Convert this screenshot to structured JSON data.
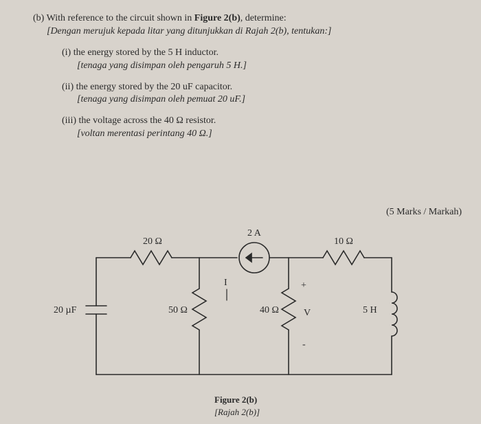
{
  "question": {
    "part_label": "(b)",
    "intro_en": "With reference to the circuit shown in ",
    "figref": "Figure 2(b)",
    "intro_en2": ", determine:",
    "intro_ms": "[Dengan merujuk kepada litar yang ditunjukkan di Rajah 2(b), tentukan:]",
    "items": [
      {
        "num": "(i)",
        "en": "the energy stored by the 5 H inductor.",
        "ms": "[tenaga yang disimpan oleh pengaruh 5 H.]"
      },
      {
        "num": "(ii)",
        "en": "the energy stored by the 20 uF capacitor.",
        "ms": "[tenaga yang disimpan oleh pemuat 20 uF.]"
      },
      {
        "num": "(iii)",
        "en": "the voltage across the 40 Ω resistor.",
        "ms": "[voltan merentasi perintang 40 Ω.]"
      }
    ],
    "marks": "(5 Marks / Markah)"
  },
  "circuit": {
    "labels": {
      "cap": "20 µF",
      "r20": "20 Ω",
      "r50": "50 Ω",
      "r40": "40 Ω",
      "r10": "10 Ω",
      "ind": "5 H",
      "src": "2 A",
      "v": "V",
      "plus": "+",
      "minus": "-",
      "i": "I"
    },
    "caption_en": "Figure 2(b)",
    "caption_ms": "[Rajah 2(b)]",
    "stroke": "#2a2a2a",
    "stroke_width": 1.6
  }
}
